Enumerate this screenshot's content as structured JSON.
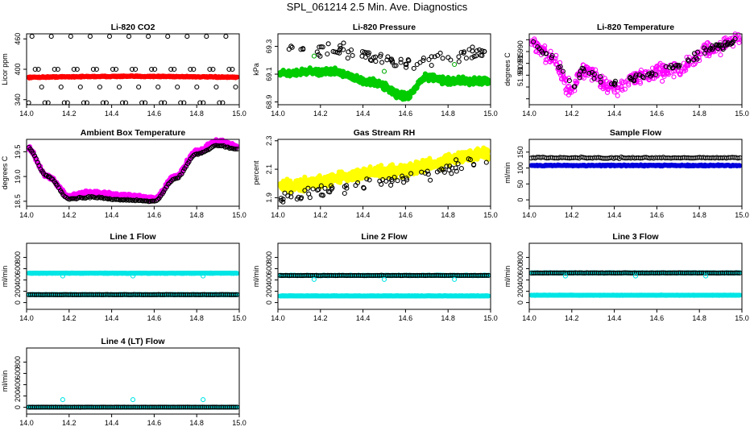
{
  "page": {
    "title": "SPL_061214  2.5 Min. Ave. Diagnostics"
  },
  "colors": {
    "axis": "#000000",
    "black_series": "#000000"
  },
  "chart_data": [
    {
      "type": "scatter",
      "title": "Li-820 CO2",
      "xlabel": "",
      "ylabel": "Licor ppm",
      "xlim": [
        14.0,
        15.0
      ],
      "ylim": [
        330,
        470
      ],
      "xticks": [
        14.0,
        14.2,
        14.4,
        14.6,
        14.8,
        15.0
      ],
      "xtick_labels": [
        "14.0",
        "14.2",
        "14.4",
        "14.6",
        "14.8",
        "15.0"
      ],
      "yticks": [
        340,
        400,
        460
      ],
      "ytick_labels": [
        "340",
        "400",
        "460"
      ],
      "series": [
        {
          "name": "co2-red",
          "color": "#ff0000",
          "filled": true,
          "gen": "band",
          "n": 400,
          "base": 384,
          "jitter": 1.5,
          "bump": 2
        },
        {
          "name": "co2-black",
          "color": "#000000",
          "filled": false,
          "gen": "levels",
          "levels": [
            334,
            365,
            400,
            465
          ],
          "step": 0.0152,
          "phase": 0
        }
      ]
    },
    {
      "type": "scatter",
      "title": "Li-820 Pressure",
      "xlabel": "",
      "ylabel": "kPa",
      "xlim": [
        14.0,
        15.0
      ],
      "ylim": [
        68.88,
        69.39
      ],
      "xticks": [
        14.0,
        14.2,
        14.4,
        14.6,
        14.8,
        15.0
      ],
      "xtick_labels": [
        "14.0",
        "14.2",
        "14.4",
        "14.6",
        "14.8",
        "15.0"
      ],
      "yticks": [
        68.9,
        69.1,
        69.3
      ],
      "ytick_labels": [
        "68.9",
        "69.1",
        "69.3"
      ],
      "series": [
        {
          "name": "pressure-green",
          "color": "#00cc00",
          "filled": true,
          "gen": "curve",
          "n": 700,
          "knots": [
            [
              14.0,
              69.11
            ],
            [
              14.25,
              69.12
            ],
            [
              14.45,
              69.04
            ],
            [
              14.6,
              68.94
            ],
            [
              14.7,
              69.08
            ],
            [
              14.8,
              69.05
            ],
            [
              15.0,
              69.05
            ]
          ],
          "jitter": 0.035
        },
        {
          "name": "pressure-black",
          "color": "#000000",
          "filled": false,
          "gen": "scatter",
          "n": 90,
          "knots": [
            [
              14.0,
              69.3
            ],
            [
              14.3,
              69.28
            ],
            [
              14.5,
              69.2
            ],
            [
              14.6,
              69.18
            ],
            [
              15.0,
              69.26
            ]
          ],
          "jitter": 0.07
        },
        {
          "name": "pressure-green-outliers",
          "color": "#00aa00",
          "filled": false,
          "gen": "points",
          "points": [
            [
              14.17,
              69.23
            ],
            [
              14.5,
              69.12
            ],
            [
              14.83,
              69.17
            ]
          ]
        }
      ]
    },
    {
      "type": "scatter",
      "title": "Li-820 Temperature",
      "xlabel": "",
      "ylabel": "degrees C",
      "xlim": [
        14.0,
        15.0
      ],
      "ylim": [
        51.9675,
        51.9975
      ],
      "xticks": [
        14.0,
        14.2,
        14.4,
        14.6,
        14.8,
        15.0
      ],
      "xtick_labels": [
        "14.0",
        "14.2",
        "14.4",
        "14.6",
        "14.8",
        "15.0"
      ],
      "yticks": [
        51.97,
        51.975,
        51.98,
        51.985,
        51.99,
        51.995
      ],
      "ytick_labels": [
        "51.970",
        "51.975",
        "51.980",
        "51.985",
        "51.990",
        "51.995"
      ],
      "ytick_show": [
        false,
        false,
        true,
        true,
        true,
        false
      ],
      "series": [
        {
          "name": "licor-temp-magenta",
          "color": "#ff00ff",
          "filled": false,
          "gen": "scatter",
          "n": 420,
          "knots": [
            [
              14.0,
              51.994
            ],
            [
              14.1,
              51.988
            ],
            [
              14.2,
              51.974
            ],
            [
              14.25,
              51.982
            ],
            [
              14.4,
              51.975
            ],
            [
              14.55,
              51.98
            ],
            [
              14.7,
              51.983
            ],
            [
              14.85,
              51.991
            ],
            [
              15.0,
              51.996
            ]
          ],
          "jitter": 0.0045
        },
        {
          "name": "licor-temp-black",
          "color": "#000000",
          "filled": false,
          "gen": "scatter",
          "n": 90,
          "knots": [
            [
              14.0,
              51.994
            ],
            [
              14.1,
              51.988
            ],
            [
              14.2,
              51.976
            ],
            [
              14.25,
              51.982
            ],
            [
              14.4,
              51.976
            ],
            [
              14.55,
              51.98
            ],
            [
              14.7,
              51.984
            ],
            [
              14.85,
              51.991
            ],
            [
              15.0,
              51.995
            ]
          ],
          "jitter": 0.0025
        }
      ]
    },
    {
      "type": "scatter",
      "title": "Ambient Box Temperature",
      "xlabel": "",
      "ylabel": "degrees C",
      "xlim": [
        14.0,
        15.0
      ],
      "ylim": [
        18.4,
        19.75
      ],
      "xticks": [
        14.0,
        14.2,
        14.4,
        14.6,
        14.8,
        15.0
      ],
      "xtick_labels": [
        "14.0",
        "14.2",
        "14.4",
        "14.6",
        "14.8",
        "15.0"
      ],
      "yticks": [
        18.5,
        19.0,
        19.5
      ],
      "ytick_labels": [
        "18.5",
        "19.0",
        "19.5"
      ],
      "series": [
        {
          "name": "box-temp-magenta",
          "color": "#ff00ff",
          "filled": true,
          "gen": "curve",
          "n": 520,
          "knots": [
            [
              14.0,
              19.6
            ],
            [
              14.1,
              19.0
            ],
            [
              14.2,
              18.6
            ],
            [
              14.3,
              18.67
            ],
            [
              14.5,
              18.6
            ],
            [
              14.6,
              18.55
            ],
            [
              14.7,
              19.0
            ],
            [
              14.8,
              19.5
            ],
            [
              14.9,
              19.72
            ],
            [
              15.0,
              19.6
            ]
          ],
          "jitter": 0.06
        },
        {
          "name": "box-temp-black",
          "color": "#000000",
          "filled": false,
          "gen": "curve",
          "n": 140,
          "knots": [
            [
              14.0,
              19.6
            ],
            [
              14.1,
              19.0
            ],
            [
              14.2,
              18.55
            ],
            [
              14.3,
              18.58
            ],
            [
              14.5,
              18.52
            ],
            [
              14.6,
              18.5
            ],
            [
              14.7,
              18.95
            ],
            [
              14.8,
              19.45
            ],
            [
              14.9,
              19.62
            ],
            [
              15.0,
              19.55
            ]
          ],
          "jitter": 0.02
        }
      ]
    },
    {
      "type": "scatter",
      "title": "Gas Stream RH",
      "xlabel": "",
      "ylabel": "percent",
      "xlim": [
        14.0,
        15.0
      ],
      "ylim": [
        1.84,
        2.31
      ],
      "xticks": [
        14.0,
        14.2,
        14.4,
        14.6,
        14.8,
        15.0
      ],
      "xtick_labels": [
        "14.0",
        "14.2",
        "14.4",
        "14.6",
        "14.8",
        "15.0"
      ],
      "yticks": [
        1.9,
        2.1,
        2.3
      ],
      "ytick_labels": [
        "1.9",
        "2.1",
        "2.3"
      ],
      "series": [
        {
          "name": "rh-yellow",
          "color": "#ffff00",
          "filled": true,
          "gen": "curve",
          "n": 650,
          "knots": [
            [
              14.0,
              1.98
            ],
            [
              14.5,
              2.08
            ],
            [
              15.0,
              2.21
            ]
          ],
          "jitter": 0.06
        },
        {
          "name": "rh-black",
          "color": "#000000",
          "filled": false,
          "gen": "scatter",
          "n": 80,
          "knots": [
            [
              14.0,
              1.9
            ],
            [
              14.5,
              2.02
            ],
            [
              15.0,
              2.15
            ]
          ],
          "jitter": 0.06
        }
      ]
    },
    {
      "type": "scatter",
      "title": "Sample Flow",
      "xlabel": "",
      "ylabel": "ml/min",
      "xlim": [
        14.0,
        15.0
      ],
      "ylim": [
        -20,
        190
      ],
      "xticks": [
        14.0,
        14.2,
        14.4,
        14.6,
        14.8,
        15.0
      ],
      "xtick_labels": [
        "14.0",
        "14.2",
        "14.4",
        "14.6",
        "14.8",
        "15.0"
      ],
      "yticks": [
        0,
        50,
        100,
        150
      ],
      "ytick_labels": [
        "0",
        "50",
        "100",
        "150"
      ],
      "series": [
        {
          "name": "sample-flow-blue",
          "color": "#0000dd",
          "filled": true,
          "gen": "band",
          "n": 300,
          "base": 108,
          "jitter": 2.5,
          "bump": 0
        },
        {
          "name": "sample-flow-black",
          "color": "#000000",
          "filled": false,
          "gen": "band",
          "n": 110,
          "base": 132,
          "jitter": 3,
          "bump": 0
        }
      ]
    },
    {
      "type": "scatter",
      "title": "Line 1 Flow",
      "xlabel": "",
      "ylabel": "ml/min",
      "xlim": [
        14.0,
        15.0
      ],
      "ylim": [
        -120,
        1050
      ],
      "xticks": [
        14.0,
        14.2,
        14.4,
        14.6,
        14.8,
        15.0
      ],
      "xtick_labels": [
        "14.0",
        "14.2",
        "14.4",
        "14.6",
        "14.8",
        "15.0"
      ],
      "yticks": [
        0,
        200,
        400,
        600,
        800
      ],
      "ytick_labels": [
        "0",
        "200",
        "400",
        "600",
        "800"
      ],
      "series": [
        {
          "name": "line1-cyan-high",
          "color": "#00e5e5",
          "filled": true,
          "gen": "band",
          "n": 320,
          "base": 520,
          "jitter": 6,
          "bump": 0
        },
        {
          "name": "line1-cyan-low",
          "color": "#00e5e5",
          "filled": true,
          "gen": "band",
          "n": 320,
          "base": 140,
          "jitter": 4,
          "bump": 0
        },
        {
          "name": "line1-black",
          "color": "#000000",
          "filled": false,
          "gen": "band",
          "n": 110,
          "base": 140,
          "jitter": 3,
          "bump": 0
        },
        {
          "name": "line1-cyan-dips",
          "color": "#00e5e5",
          "filled": false,
          "gen": "points",
          "points": [
            [
              14.17,
              470
            ],
            [
              14.5,
              470
            ],
            [
              14.83,
              470
            ]
          ]
        }
      ]
    },
    {
      "type": "scatter",
      "title": "Line 2 Flow",
      "xlabel": "",
      "ylabel": "ml/min",
      "xlim": [
        14.0,
        15.0
      ],
      "ylim": [
        -120,
        1050
      ],
      "xticks": [
        14.0,
        14.2,
        14.4,
        14.6,
        14.8,
        15.0
      ],
      "xtick_labels": [
        "14.0",
        "14.2",
        "14.4",
        "14.6",
        "14.8",
        "15.0"
      ],
      "yticks": [
        0,
        200,
        400,
        600,
        800
      ],
      "ytick_labels": [
        "0",
        "200",
        "400",
        "600",
        "800"
      ],
      "series": [
        {
          "name": "line2-cyan-high",
          "color": "#00e5e5",
          "filled": true,
          "gen": "band",
          "n": 320,
          "base": 480,
          "jitter": 6,
          "bump": 0
        },
        {
          "name": "line2-cyan-low",
          "color": "#00e5e5",
          "filled": true,
          "gen": "band",
          "n": 320,
          "base": 118,
          "jitter": 4,
          "bump": 0
        },
        {
          "name": "line2-black",
          "color": "#000000",
          "filled": false,
          "gen": "band",
          "n": 110,
          "base": 480,
          "jitter": 4,
          "bump": 0
        },
        {
          "name": "line2-cyan-dips",
          "color": "#00e5e5",
          "filled": false,
          "gen": "points",
          "points": [
            [
              14.17,
              410
            ],
            [
              14.5,
              410
            ],
            [
              14.83,
              410
            ]
          ]
        }
      ]
    },
    {
      "type": "scatter",
      "title": "Line 3 Flow",
      "xlabel": "",
      "ylabel": "ml/min",
      "xlim": [
        14.0,
        15.0
      ],
      "ylim": [
        -120,
        1050
      ],
      "xticks": [
        14.0,
        14.2,
        14.4,
        14.6,
        14.8,
        15.0
      ],
      "xtick_labels": [
        "14.0",
        "14.2",
        "14.4",
        "14.6",
        "14.8",
        "15.0"
      ],
      "yticks": [
        0,
        200,
        400,
        600,
        800
      ],
      "ytick_labels": [
        "0",
        "200",
        "400",
        "600",
        "800"
      ],
      "series": [
        {
          "name": "line3-cyan-high",
          "color": "#00e5e5",
          "filled": true,
          "gen": "band",
          "n": 320,
          "base": 525,
          "jitter": 6,
          "bump": 0
        },
        {
          "name": "line3-cyan-low",
          "color": "#00e5e5",
          "filled": true,
          "gen": "band",
          "n": 320,
          "base": 130,
          "jitter": 4,
          "bump": 0
        },
        {
          "name": "line3-black",
          "color": "#000000",
          "filled": false,
          "gen": "band",
          "n": 110,
          "base": 525,
          "jitter": 4,
          "bump": 0
        },
        {
          "name": "line3-cyan-dips",
          "color": "#00e5e5",
          "filled": false,
          "gen": "points",
          "points": [
            [
              14.17,
              470
            ],
            [
              14.5,
              470
            ],
            [
              14.83,
              470
            ]
          ]
        }
      ]
    },
    {
      "type": "scatter",
      "title": "Line 4 (LT) Flow",
      "xlabel": "",
      "ylabel": "ml/min",
      "xlim": [
        14.0,
        15.0
      ],
      "ylim": [
        -120,
        1050
      ],
      "xticks": [
        14.0,
        14.2,
        14.4,
        14.6,
        14.8,
        15.0
      ],
      "xtick_labels": [
        "14.0",
        "14.2",
        "14.4",
        "14.6",
        "14.8",
        "15.0"
      ],
      "yticks": [
        0,
        200,
        400,
        600,
        800
      ],
      "ytick_labels": [
        "0",
        "200",
        "400",
        "600",
        "800"
      ],
      "series": [
        {
          "name": "line4-cyan",
          "color": "#00e5e5",
          "filled": true,
          "gen": "band",
          "n": 320,
          "base": 2,
          "jitter": 2,
          "bump": 0
        },
        {
          "name": "line4-black",
          "color": "#000000",
          "filled": false,
          "gen": "band",
          "n": 110,
          "base": 2,
          "jitter": 2,
          "bump": 0
        },
        {
          "name": "line4-cyan-spikes",
          "color": "#00e5e5",
          "filled": false,
          "gen": "points",
          "points": [
            [
              14.17,
              135
            ],
            [
              14.5,
              135
            ],
            [
              14.83,
              135
            ]
          ]
        }
      ]
    }
  ]
}
